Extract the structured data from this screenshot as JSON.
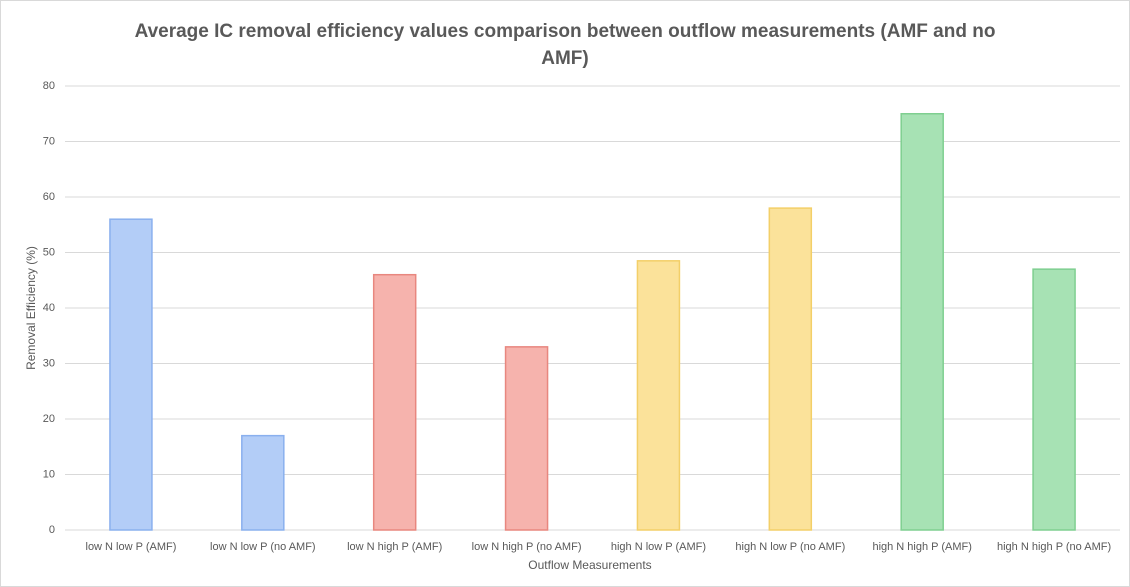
{
  "chart_data": {
    "type": "bar",
    "title": "Average IC removal efficiency values comparison between outflow measurements (AMF and no AMF)",
    "x_label": "Outflow Measurements",
    "y_label": "Removal Efficiency (%)",
    "categories": [
      "low N low P (AMF)",
      "low N low P (no AMF)",
      "low N high P (AMF)",
      "low N high P (no AMF)",
      "high N low P (AMF)",
      "high N low P (no AMF)",
      "high N high P (AMF)",
      "high N high P (no AMF)"
    ],
    "values": [
      56,
      17,
      46,
      33,
      48.5,
      58,
      75,
      47
    ],
    "colors": [
      "#b3cdf7",
      "#b3cdf7",
      "#f6b3ad",
      "#f6b3ad",
      "#fbe29a",
      "#fbe29a",
      "#a7e2b4",
      "#a7e2b4"
    ],
    "edge_colors": [
      "#8ab0ee",
      "#8ab0ee",
      "#e8877f",
      "#e8877f",
      "#f3cf68",
      "#f3cf68",
      "#7fcf90",
      "#7fcf90"
    ],
    "ylim": [
      0,
      80
    ],
    "yticks": [
      0,
      10,
      20,
      30,
      40,
      50,
      60,
      70,
      80
    ],
    "grid": true
  }
}
